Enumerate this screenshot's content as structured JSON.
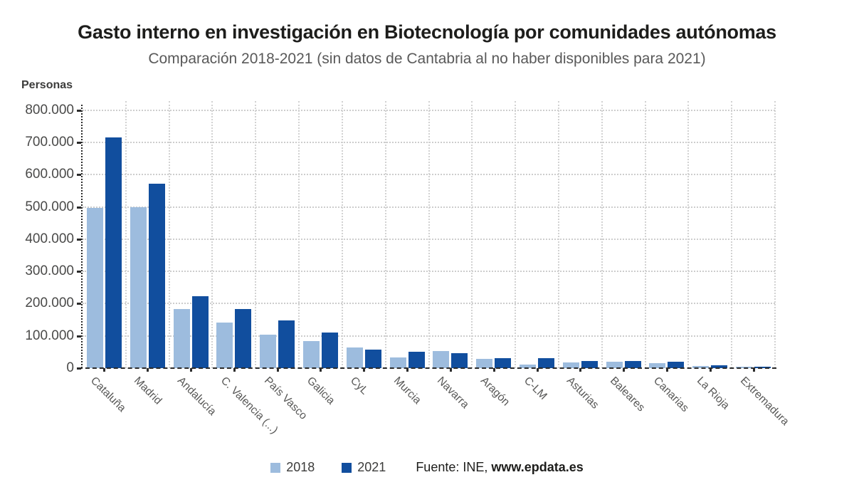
{
  "title": "Gasto interno en investigación en Biotecnología por comunidades autónomas",
  "subtitle": "Comparación 2018-2021 (sin datos de Cantabria al no haber disponibles para 2021)",
  "y_axis_title": "Personas",
  "legend": {
    "series_2018": "2018",
    "series_2021": "2021"
  },
  "source": {
    "prefix": "Fuente: INE,",
    "site": "www.epdata.es"
  },
  "colors": {
    "series_2018": "#9dbcde",
    "series_2021": "#114e9e",
    "grid": "#cdcdcd",
    "axis": "#2b2b2b",
    "title_text": "#1d1d1b",
    "subtitle_text": "#595959",
    "tick_text": "#4a4a49"
  },
  "chart_data": {
    "type": "bar",
    "title": "Gasto interno en investigación en Biotecnología por comunidades autónomas",
    "subtitle": "Comparación 2018-2021 (sin datos de Cantabria al no haber disponibles para 2021)",
    "ylabel": "Personas",
    "xlabel": "",
    "ylim": [
      0,
      800000
    ],
    "ytick_step": 100000,
    "ytick_labels": [
      "0",
      "100.000",
      "200.000",
      "300.000",
      "400.000",
      "500.000",
      "600.000",
      "700.000",
      "800.000"
    ],
    "grid": true,
    "legend_position": "bottom",
    "categories": [
      "Cataluña",
      "Madrid",
      "Andalucía",
      "C. Valencia (...)",
      "País Vasco",
      "Galicia",
      "CyL",
      "Murcia",
      "Navarra",
      "Aragón",
      "C-LM",
      "Asturias",
      "Baleares",
      "Canarias",
      "La Rioja",
      "Extremadura"
    ],
    "series": [
      {
        "name": "2018",
        "color": "#9dbcde",
        "values": [
          497000,
          500000,
          184000,
          142000,
          103000,
          84000,
          64000,
          33000,
          53000,
          29000,
          11000,
          17000,
          20000,
          16000,
          7000,
          4000
        ]
      },
      {
        "name": "2021",
        "color": "#114e9e",
        "values": [
          715000,
          571000,
          224000,
          183000,
          148000,
          111000,
          58000,
          51000,
          47000,
          32000,
          30000,
          23000,
          21000,
          19000,
          8000,
          5000
        ]
      }
    ]
  }
}
